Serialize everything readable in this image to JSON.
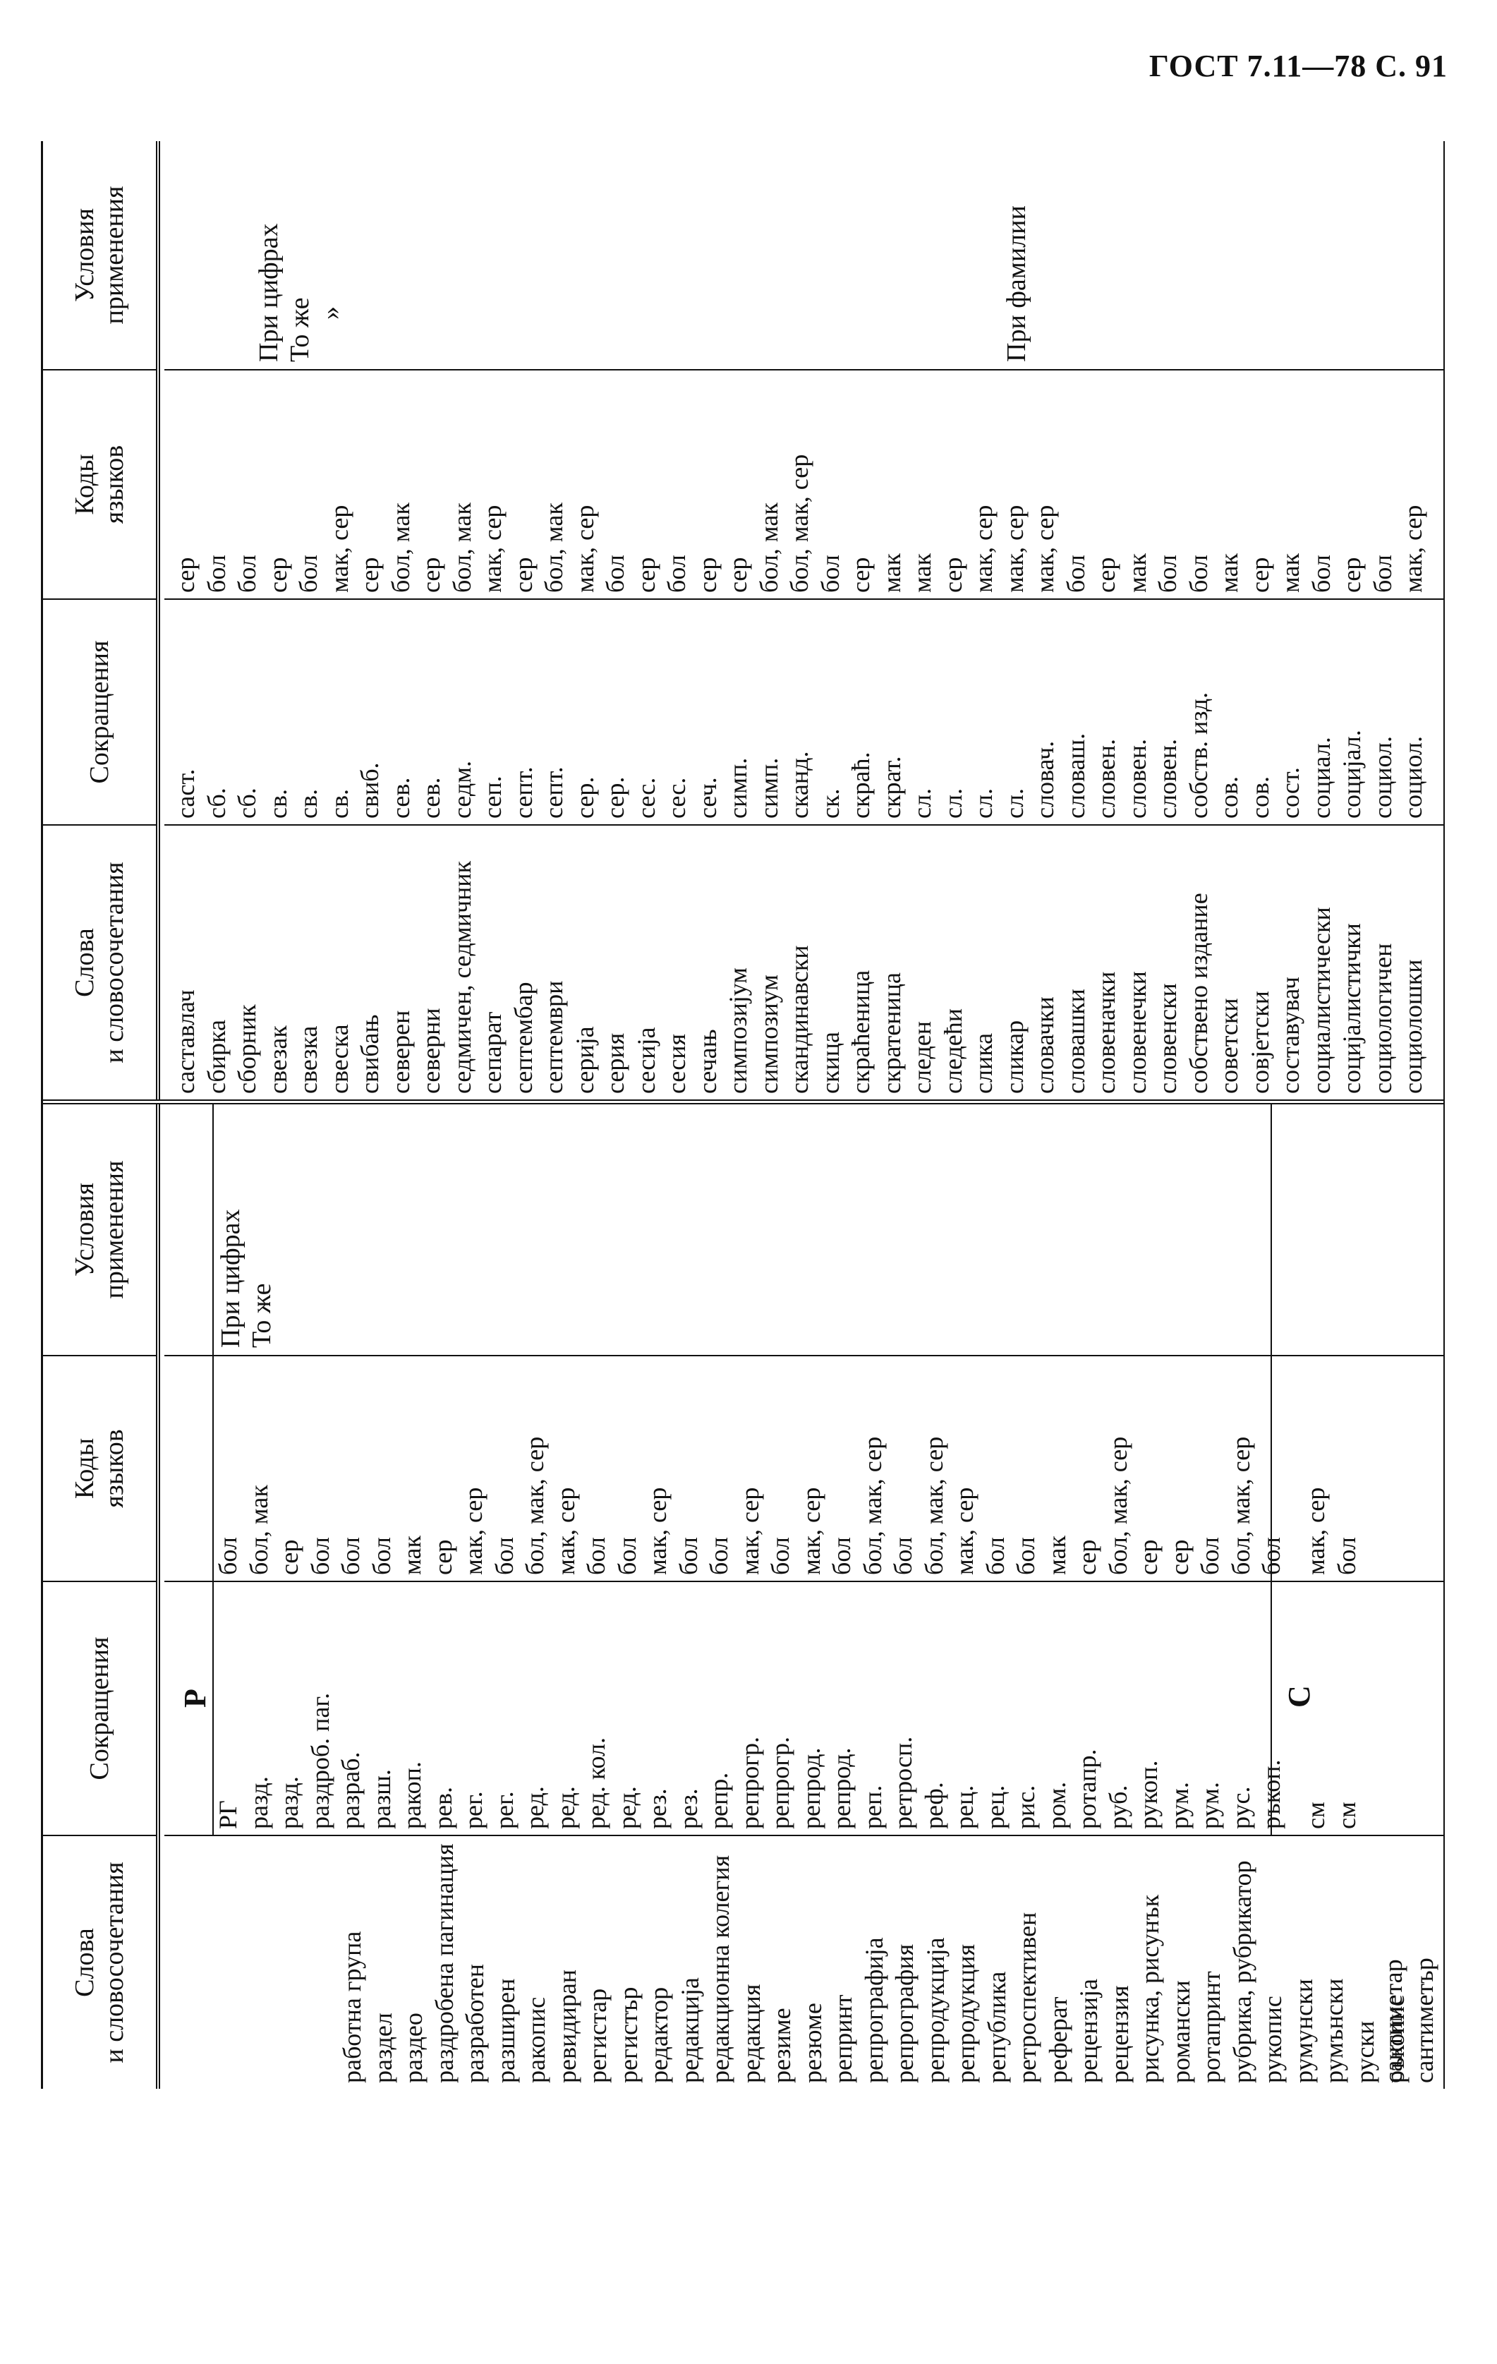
{
  "page_header": "ГОСТ 7.11—78 С. 91",
  "table": {
    "headers": {
      "words": "Слова\nи словосочетания",
      "abbr": "Сокращения",
      "codes": "Коды\nязыков",
      "cond": "Условия\nприменения"
    },
    "left": {
      "letter_r": "Р",
      "letter_s": "С",
      "rows_r": [
        {
          "word": "работна група",
          "abbr": "РГ",
          "code": "бол"
        },
        {
          "word": "раздел",
          "abbr": "разд.",
          "code": "бол, мак"
        },
        {
          "word": "раздео",
          "abbr": "разд.",
          "code": "сер"
        },
        {
          "word": "раздробена пагинация",
          "abbr": "раздроб. паг.",
          "code": "бол"
        },
        {
          "word": "разработен",
          "abbr": "разраб.",
          "code": "бол"
        },
        {
          "word": "разширен",
          "abbr": "разш.",
          "code": "бол"
        },
        {
          "word": "ракопис",
          "abbr": "ракоп.",
          "code": "мак"
        },
        {
          "word": "ревидиран",
          "abbr": "рев.",
          "code": "сер"
        },
        {
          "word": "регистар",
          "abbr": "рег.",
          "code": "мак, сер"
        },
        {
          "word": "регистър",
          "abbr": "рег.",
          "code": "бол"
        },
        {
          "word": "редактор",
          "abbr": "ред.",
          "code": "бол, мак, сер"
        },
        {
          "word": "редакција",
          "abbr": "ред.",
          "code": "мак, сер"
        },
        {
          "word": "редакционна колегия",
          "abbr": "ред. кол.",
          "code": "бол"
        },
        {
          "word": "редакция",
          "abbr": "ред.",
          "code": "бол"
        },
        {
          "word": "резиме",
          "abbr": "рез.",
          "code": "мак, сер"
        },
        {
          "word": "резюме",
          "abbr": "рез.",
          "code": "бол"
        },
        {
          "word": "репринт",
          "abbr": "репр.",
          "code": "бол"
        },
        {
          "word": "репрографија",
          "abbr": "репрогр.",
          "code": "мак, сер"
        },
        {
          "word": "репрография",
          "abbr": "репрогр.",
          "code": "бол"
        },
        {
          "word": "репродукција",
          "abbr": "репрод.",
          "code": "мак, сер"
        },
        {
          "word": "репродукция",
          "abbr": "репрод.",
          "code": "бол"
        },
        {
          "word": "република",
          "abbr": "реп.",
          "code": "бол, мак, сер"
        },
        {
          "word": "ретроспективен",
          "abbr": "ретросп.",
          "code": "бол"
        },
        {
          "word": "реферат",
          "abbr": "реф.",
          "code": "бол, мак, сер"
        },
        {
          "word": "рецензија",
          "abbr": "рец.",
          "code": "мак, сер"
        },
        {
          "word": "рецензия",
          "abbr": "рец.",
          "code": "бол"
        },
        {
          "word": "рисунка, рисунък",
          "abbr": "рис.",
          "code": "бол"
        },
        {
          "word": "романски",
          "abbr": "ром.",
          "code": "мак"
        },
        {
          "word": "ротапринт",
          "abbr": "ротапр.",
          "code": "сер"
        },
        {
          "word": "рубрика, рубрикатор",
          "abbr": "руб.",
          "code": "бол, мак, сер"
        },
        {
          "word": "рукопис",
          "abbr": "рукоп.",
          "code": "сер"
        },
        {
          "word": "румунски",
          "abbr": "рум.",
          "code": "сер"
        },
        {
          "word": "румънски",
          "abbr": "рум.",
          "code": "бол"
        },
        {
          "word": "руски",
          "abbr": "рус.",
          "code": "бол, мак, сер"
        },
        {
          "word": "ръкопис",
          "abbr": "ръкоп.",
          "code": "бол"
        }
      ],
      "rows_s": [
        {
          "word": "сантиметар",
          "abbr": "см",
          "code": "мак, сер"
        },
        {
          "word": "сантиметър",
          "abbr": "см",
          "code": "бол"
        }
      ],
      "cond_1": "При цифрах",
      "cond_2": "То же"
    },
    "right": {
      "rows": [
        {
          "word": "саставлач",
          "abbr": "саст.",
          "code": "сер"
        },
        {
          "word": "сбирка",
          "abbr": "сб.",
          "code": "бол"
        },
        {
          "word": "сборник",
          "abbr": "сб.",
          "code": "бол"
        },
        {
          "word": "свезак",
          "abbr": "св.",
          "code": "сер"
        },
        {
          "word": "свезка",
          "abbr": "св.",
          "code": "бол"
        },
        {
          "word": "свеска",
          "abbr": "св.",
          "code": "мак, сер"
        },
        {
          "word": "свибањ",
          "abbr": "свиб.",
          "code": "сер"
        },
        {
          "word": "северен",
          "abbr": "сев.",
          "code": "бол, мак"
        },
        {
          "word": "северни",
          "abbr": "сев.",
          "code": "сер"
        },
        {
          "word": "седмичен, седмичник",
          "abbr": "седм.",
          "code": "бол, мак"
        },
        {
          "word": "сепарат",
          "abbr": "сеп.",
          "code": "мак, сер"
        },
        {
          "word": "септембар",
          "abbr": "септ.",
          "code": "сер"
        },
        {
          "word": "септември",
          "abbr": "септ.",
          "code": "бол, мак"
        },
        {
          "word": "серија",
          "abbr": "сер.",
          "code": "мак, сер"
        },
        {
          "word": "серия",
          "abbr": "сер.",
          "code": "бол"
        },
        {
          "word": "сесија",
          "abbr": "сес.",
          "code": "сер"
        },
        {
          "word": "сесия",
          "abbr": "сес.",
          "code": "бол"
        },
        {
          "word": "сечањ",
          "abbr": "сеч.",
          "code": "сер"
        },
        {
          "word": "симпозијум",
          "abbr": "симп.",
          "code": "сер"
        },
        {
          "word": "симпозиум",
          "abbr": "симп.",
          "code": "бол, мак"
        },
        {
          "word": "скандинавски",
          "abbr": "сканд.",
          "code": "бол, мак, сер"
        },
        {
          "word": "скица",
          "abbr": "ск.",
          "code": "бол"
        },
        {
          "word": "скраћеница",
          "abbr": "скраћ.",
          "code": "сер"
        },
        {
          "word": "скратеница",
          "abbr": "скрат.",
          "code": "мак"
        },
        {
          "word": "следен",
          "abbr": "сл.",
          "code": "мак"
        },
        {
          "word": "следећи",
          "abbr": "сл.",
          "code": "сер"
        },
        {
          "word": "слика",
          "abbr": "сл.",
          "code": "мак, сер"
        },
        {
          "word": "сликар",
          "abbr": "сл.",
          "code": "мак, сер"
        },
        {
          "word": "словачки",
          "abbr": "словач.",
          "code": "мак, сер"
        },
        {
          "word": "словашки",
          "abbr": "словаш.",
          "code": "бол"
        },
        {
          "word": "словеначки",
          "abbr": "словен.",
          "code": "сер"
        },
        {
          "word": "словенечки",
          "abbr": "словен.",
          "code": "мак"
        },
        {
          "word": "словенски",
          "abbr": "словен.",
          "code": "бол"
        },
        {
          "word": "собствено издание",
          "abbr": "собств. изд.",
          "code": "бол"
        },
        {
          "word": "советски",
          "abbr": "сов.",
          "code": "мак"
        },
        {
          "word": "совјетски",
          "abbr": "сов.",
          "code": "сер"
        },
        {
          "word": "составувач",
          "abbr": "сост.",
          "code": "мак"
        },
        {
          "word": "социалистически",
          "abbr": "социал.",
          "code": "бол"
        },
        {
          "word": "социјалистички",
          "abbr": "социјал.",
          "code": "сер"
        },
        {
          "word": "социологичен",
          "abbr": "социол.",
          "code": "бол"
        },
        {
          "word": "социолошки",
          "abbr": "социол.",
          "code": "мак, сер"
        }
      ],
      "cond_1": "При цифрах",
      "cond_2": "То же",
      "cond_3": "»",
      "cond_4": "При фамилии"
    }
  }
}
